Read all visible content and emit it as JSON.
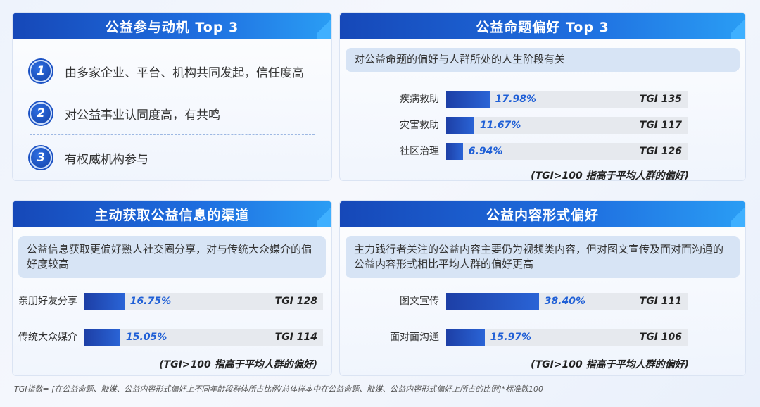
{
  "panels": {
    "motivation": {
      "title": "公益参与动机 Top 3",
      "items": [
        {
          "num": "1",
          "text": "由多家企业、平台、机构共同发起，信任度高"
        },
        {
          "num": "2",
          "text": "对公益事业认同度高，有共鸣"
        },
        {
          "num": "3",
          "text": "有权威机构参与"
        }
      ]
    },
    "topic": {
      "title": "公益命题偏好 Top 3",
      "desc": "对公益命题的偏好与人群所处的人生阶段有关",
      "note": "(TGI>100 指高于平均人群的偏好)"
    },
    "channel": {
      "title": "主动获取公益信息的渠道",
      "desc": "公益信息获取更偏好熟人社交圈分享，对与传统大众媒介的偏好度较高",
      "note": "(TGI>100 指高于平均人群的偏好)"
    },
    "format": {
      "title": "公益内容形式偏好",
      "desc": "主力践行者关注的公益内容主要仍为视频类内容，但对图文宣传及面对面沟通的公益内容形式相比平均人群的偏好更高",
      "note": "(TGI>100 指高于平均人群的偏好)"
    }
  },
  "footnote": "TGI指数= [在公益命题、触媒、公益内容形式偏好上不同年龄段群体所占比例/总体样本中在公益命题、触媒、公益内容形式偏好上所占的比例]*标准数100",
  "colors": {
    "header": "#1f5fd6",
    "bar": "#1d3fa6",
    "value": "#1f5fd6",
    "track": "#e6e9ee"
  },
  "chart_data": [
    {
      "type": "bar",
      "title": "公益命题偏好 Top 3",
      "categories": [
        "疾病救助",
        "灾害救助",
        "社区治理"
      ],
      "values": [
        17.98,
        11.67,
        6.94
      ],
      "value_labels": [
        "17.98%",
        "11.67%",
        "6.94%"
      ],
      "tgi": [
        "TGI 135",
        "TGI 117",
        "TGI 126"
      ],
      "xlim": [
        0,
        100
      ]
    },
    {
      "type": "bar",
      "title": "主动获取公益信息的渠道",
      "categories": [
        "亲朋好友分享",
        "传统大众媒介"
      ],
      "values": [
        16.75,
        15.05
      ],
      "value_labels": [
        "16.75%",
        "15.05%"
      ],
      "tgi": [
        "TGI 128",
        "TGI 114"
      ],
      "xlim": [
        0,
        100
      ]
    },
    {
      "type": "bar",
      "title": "公益内容形式偏好",
      "categories": [
        "图文宣传",
        "面对面沟通"
      ],
      "values": [
        38.4,
        15.97
      ],
      "value_labels": [
        "38.40%",
        "15.97%"
      ],
      "tgi": [
        "TGI 111",
        "TGI 106"
      ],
      "xlim": [
        0,
        100
      ]
    }
  ]
}
